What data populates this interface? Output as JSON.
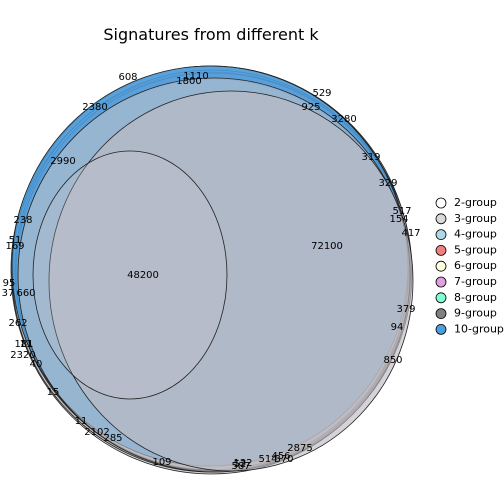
{
  "chart_data": {
    "type": "euler",
    "title": "Signatures from different k",
    "legend": {
      "placement": "right",
      "entries": [
        {
          "label": "2-group",
          "color": "#FFFFFF"
        },
        {
          "label": "3-group",
          "color": "#D9D9D9"
        },
        {
          "label": "4-group",
          "color": "#ADD8E6"
        },
        {
          "label": "5-group",
          "color": "#F08080"
        },
        {
          "label": "6-group",
          "color": "#FFFFE0"
        },
        {
          "label": "7-group",
          "color": "#DDA0DD"
        },
        {
          "label": "8-group",
          "color": "#7FFFD4"
        },
        {
          "label": "9-group",
          "color": "#808080"
        },
        {
          "label": "10-group",
          "color": "#4A9FE0"
        }
      ]
    },
    "region_labels": [
      "48200",
      "72100",
      "1110",
      "1800",
      "608",
      "529",
      "925",
      "3280",
      "2380",
      "319",
      "329",
      "2990",
      "517",
      "154",
      "417",
      "238",
      "51",
      "169",
      "95",
      "37",
      "660",
      "262",
      "181",
      "2320",
      "379",
      "94",
      "11",
      "40",
      "850",
      "15",
      "11",
      "2102",
      "285",
      "109",
      "52",
      "587",
      "132",
      "514",
      "456",
      "370",
      "2875"
    ]
  }
}
